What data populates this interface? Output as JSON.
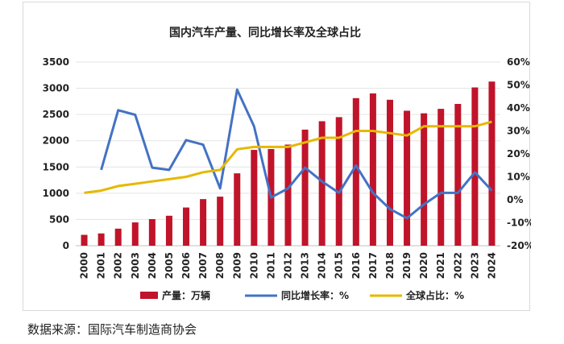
{
  "chart_data": {
    "type": "bar",
    "title": "国内汽车产量、同比增长率及全球占比",
    "categories": [
      "2000",
      "2001",
      "2002",
      "2003",
      "2004",
      "2005",
      "2006",
      "2007",
      "2008",
      "2009",
      "2010",
      "2011",
      "2012",
      "2013",
      "2014",
      "2015",
      "2016",
      "2017",
      "2018",
      "2019",
      "2020",
      "2021",
      "2022",
      "2023",
      "2024"
    ],
    "series": [
      {
        "name": "产量：万辆",
        "kind": "bar",
        "axis": "left",
        "color": "#c0142a",
        "values": [
          207,
          234,
          325,
          444,
          507,
          571,
          728,
          888,
          935,
          1379,
          1826,
          1842,
          1927,
          2212,
          2372,
          2450,
          2812,
          2902,
          2781,
          2572,
          2523,
          2608,
          2702,
          3016,
          3128
        ]
      },
      {
        "name": "同比增长率：%",
        "kind": "line",
        "axis": "right",
        "color": "#4472c4",
        "values": [
          null,
          13,
          39,
          37,
          14,
          13,
          26,
          24,
          5,
          48,
          32,
          1,
          5,
          14,
          8,
          3,
          15,
          3,
          -4,
          -8,
          -2,
          3,
          3,
          12,
          4
        ]
      },
      {
        "name": "全球占比：%",
        "kind": "line",
        "axis": "right",
        "color": "#e6b800",
        "values": [
          3,
          4,
          6,
          7,
          8,
          9,
          10,
          12,
          13,
          22,
          23,
          23,
          23,
          25,
          27,
          27,
          30,
          30,
          29,
          28,
          32,
          32,
          32,
          32,
          34
        ]
      }
    ],
    "y_left": {
      "min": 0,
      "max": 3500,
      "step": 500,
      "ticks": [
        "0",
        "500",
        "1000",
        "1500",
        "2000",
        "2500",
        "3000",
        "3500"
      ]
    },
    "y_right": {
      "min": -20,
      "max": 60,
      "step": 10,
      "ticks": [
        "-20%",
        "-10%",
        "0%",
        "10%",
        "20%",
        "30%",
        "40%",
        "50%",
        "60%"
      ]
    },
    "grid": true,
    "legend_position": "bottom"
  },
  "source_note": "数据来源：国际汽车制造商协会"
}
